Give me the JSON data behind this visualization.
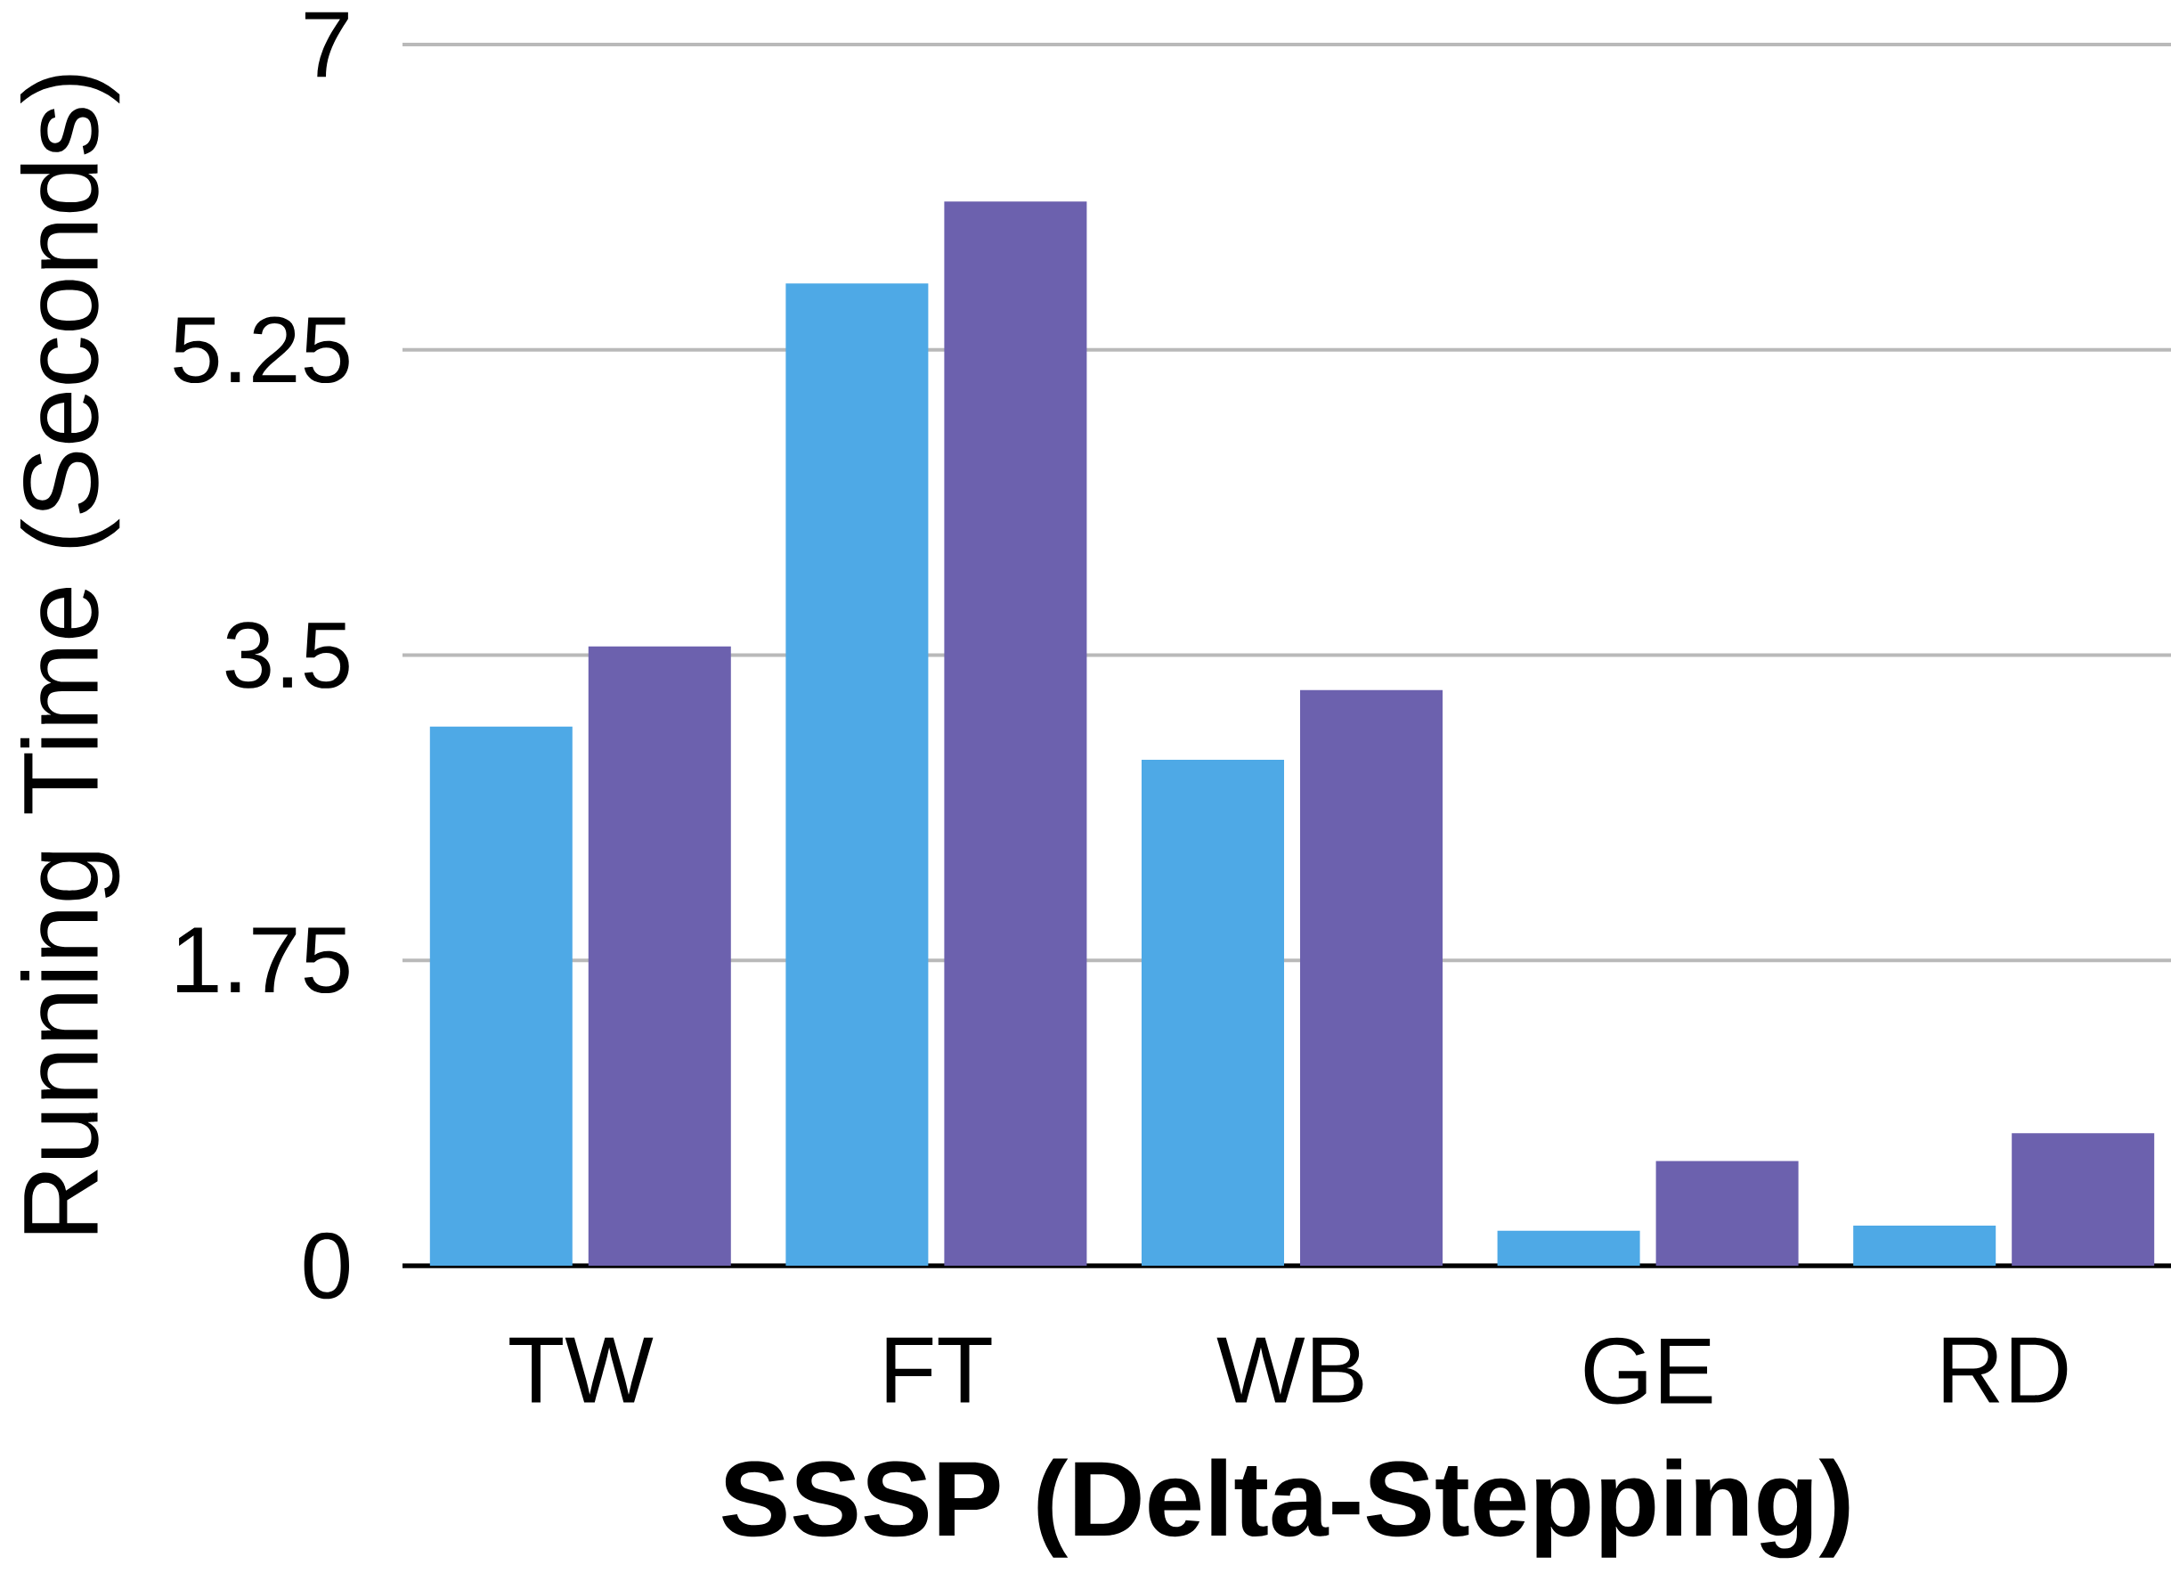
{
  "chart_data": {
    "type": "bar",
    "xlabel": "SSSP (Delta-Stepping)",
    "ylabel": "Running Time (Seconds)",
    "categories": [
      "TW",
      "FT",
      "WB",
      "GE",
      "RD"
    ],
    "series": [
      {
        "color": "#4ea9e6",
        "values": [
          3.09,
          5.63,
          2.9,
          0.2,
          0.23
        ]
      },
      {
        "color": "#6c61ae",
        "values": [
          3.55,
          6.1,
          3.3,
          0.6,
          0.76
        ]
      }
    ],
    "ylim": [
      0,
      7
    ],
    "yticks": [
      0,
      1.75,
      3.5,
      5.25,
      7
    ],
    "grid": "y"
  }
}
